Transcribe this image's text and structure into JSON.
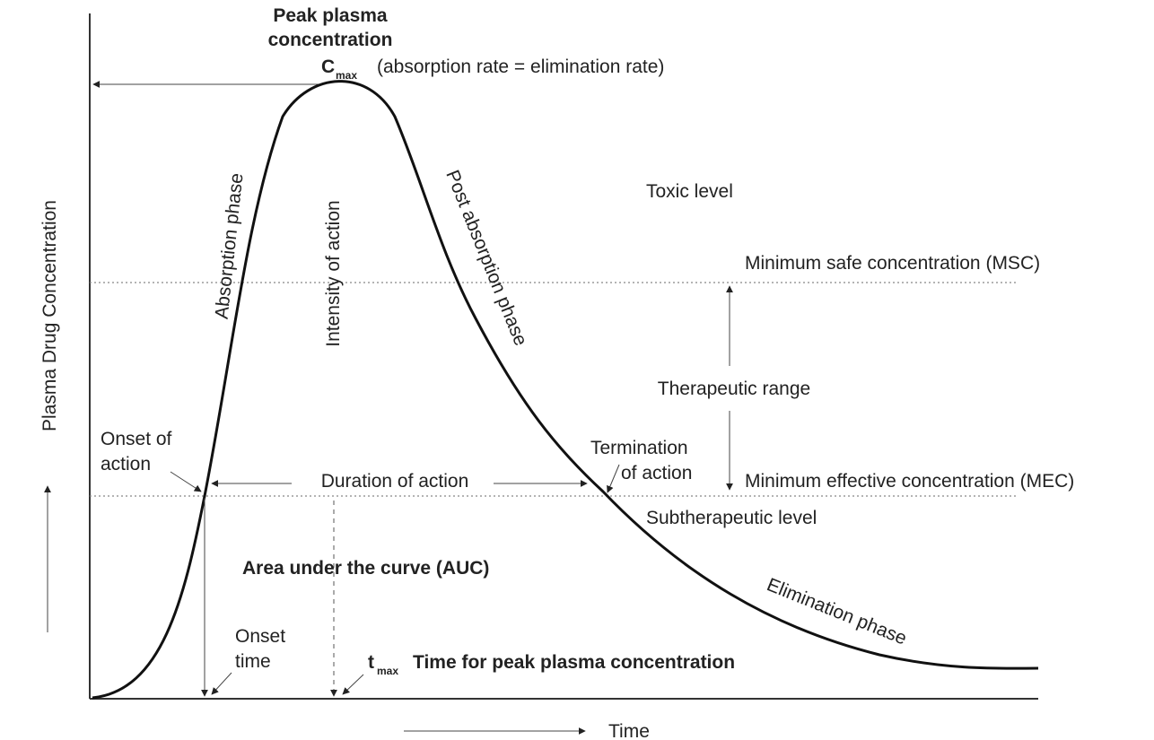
{
  "axes": {
    "y_label": "Plasma Drug Concentration",
    "x_label": "Time"
  },
  "peak": {
    "title_line1": "Peak plasma",
    "title_line2": "concentration",
    "cmax_main": "C",
    "cmax_sub": "max",
    "note": "(absorption rate = elimination rate)"
  },
  "phases": {
    "absorption": "Absorption phase",
    "intensity": "Intensity of action",
    "post_absorption": "Post absorption phase",
    "elimination": "Elimination phase"
  },
  "levels": {
    "toxic": "Toxic level",
    "msc": "Minimum safe concentration (MSC)",
    "therapeutic_range": "Therapeutic range",
    "mec": "Minimum effective concentration (MEC)",
    "subtherapeutic": "Subtherapeutic level"
  },
  "action": {
    "onset_line1": "Onset of",
    "onset_line2": "action",
    "duration": "Duration of action",
    "termination_line1": "Termination",
    "termination_line2": "of action"
  },
  "auc": "Area under the curve (AUC)",
  "onset_time": {
    "line1": "Onset",
    "line2": "time"
  },
  "tmax": {
    "main": "t",
    "sub": "max",
    "desc": "Time for peak plasma concentration"
  },
  "colors": {
    "curve": "#111111",
    "text": "#222222",
    "guide": "#888888"
  }
}
